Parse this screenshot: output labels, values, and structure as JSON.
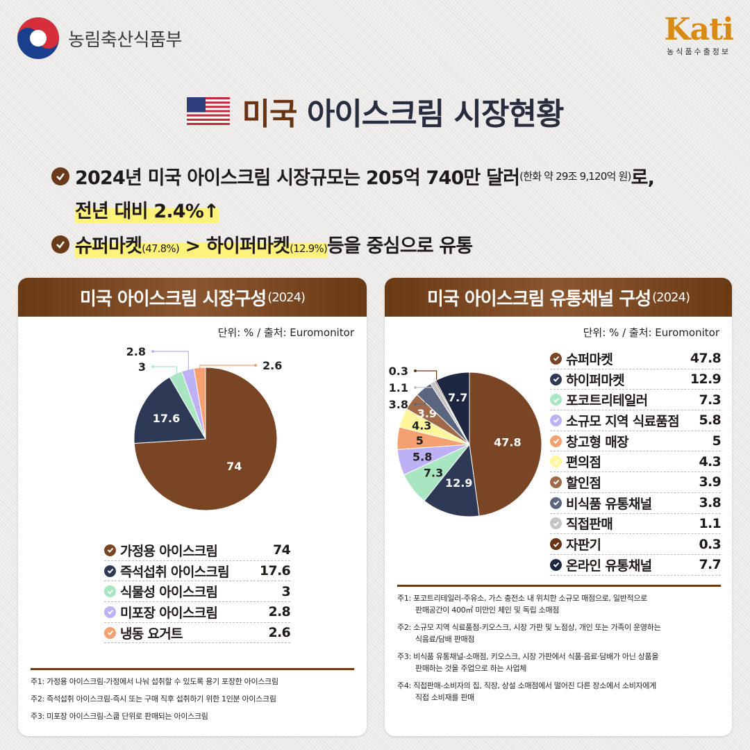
{
  "header": {
    "ministry": "농림축산식품부",
    "kati_logo": "Kati",
    "kati_sub": "농식품수출정보"
  },
  "title": {
    "highlight": "미국",
    "rest": "아이스크림 시장현황"
  },
  "bullets": {
    "b1_main": "2024년 미국 아이스크림 시장규모는 205억 740만 달러",
    "b1_small": "(한화 약 29조 9,120억 원)",
    "b1_end": "로,",
    "b2": "전년 대비 2.4%↑",
    "b3_super": "슈퍼마켓",
    "b3_super_pct": "(47.8%)",
    "b3_gt": " > ",
    "b3_hyper": "하이퍼마켓",
    "b3_hyper_pct": "(12.9%)",
    "b3_end": " 등을 중심으로 유통"
  },
  "left": {
    "title": "미국 아이스크림 시장구성",
    "year": "(2024)",
    "unit": "단위: % / 출처: Euromonitor",
    "notes": [
      {
        "tag": "주1:",
        "text": "가정용 아이스크림-가정에서 나눠 섭취할 수 있도록 용기 포장한 아이스크림"
      },
      {
        "tag": "주2:",
        "text": "즉석섭취 아이스크림-즉시 또는 구매 직후 섭취하기 위한 1인분 아이스크림"
      },
      {
        "tag": "주3:",
        "text": "미포장 아이스크림-스쿱 단위로 판매되는 아이스크림"
      }
    ]
  },
  "right": {
    "title": "미국 아이스크림 유통채널 구성",
    "year": "(2024)",
    "unit": "단위: % / 출처: Euromonitor",
    "notes": [
      {
        "tag": "주1:",
        "l1": "포코트리테일러-주유소, 가스 충전소 내 위치한 소규모 매점으로, 일반적으로",
        "l2": "판매공간이 400㎡ 미만인 체인 및 독립 소매점"
      },
      {
        "tag": "주2:",
        "l1": "소규모 지역 식료품점-키오스크, 시장 가판 및 노점상, 개인 또는 가족이 운영하는",
        "l2": "식음료/담배 판매점"
      },
      {
        "tag": "주3:",
        "l1": "비식품 유통채널-소매점, 키오스크, 시장 가판에서 식품·음료·담배가 아닌 상품을",
        "l2": "판매하는 것을 주업으로 하는 사업체"
      },
      {
        "tag": "주4:",
        "l1": "직접판매-소비자의 집, 직장, 상설 소매점에서 떨어진 다른 장소에서 소비자에게",
        "l2": "직접 소비재를 판매"
      }
    ]
  },
  "chart_data": [
    {
      "type": "pie",
      "title": "미국 아이스크림 시장구성(2024)",
      "categories": [
        "가정용 아이스크림",
        "즉석섭취 아이스크림",
        "식물성 아이스크림",
        "미포장 아이스크림",
        "냉동 요거트"
      ],
      "values": [
        74,
        17.6,
        3,
        2.8,
        2.6
      ],
      "value_labels": [
        "74",
        "17.6",
        "3",
        "2.8",
        "2.6"
      ],
      "colors": [
        "#7a4524",
        "#2e3a55",
        "#a8e6c2",
        "#bdb0f5",
        "#f5a070"
      ],
      "legend": "bottom"
    },
    {
      "type": "pie",
      "title": "미국 아이스크림 유통채널 구성(2024)",
      "categories": [
        "슈퍼마켓",
        "하이퍼마켓",
        "포코트리테일러",
        "소규모 지역 식료품점",
        "창고형 매장",
        "편의점",
        "할인점",
        "비식품 유통채널",
        "직접판매",
        "자판기",
        "온라인 유통채널"
      ],
      "values": [
        47.8,
        12.9,
        7.3,
        5.8,
        5,
        4.3,
        3.9,
        3.8,
        1.1,
        0.3,
        7.7
      ],
      "value_labels": [
        "47.8",
        "12.9",
        "7.3",
        "5.8",
        "5",
        "4.3",
        "3.9",
        "3.8",
        "1.1",
        "0.3",
        "7.7"
      ],
      "colors": [
        "#7a4524",
        "#2e3a55",
        "#a8e6c2",
        "#bdb0f5",
        "#f5a070",
        "#fff59a",
        "#a06a48",
        "#5a6680",
        "#c4c4c4",
        "#6a3414",
        "#1e2740"
      ],
      "legend": "right"
    }
  ]
}
